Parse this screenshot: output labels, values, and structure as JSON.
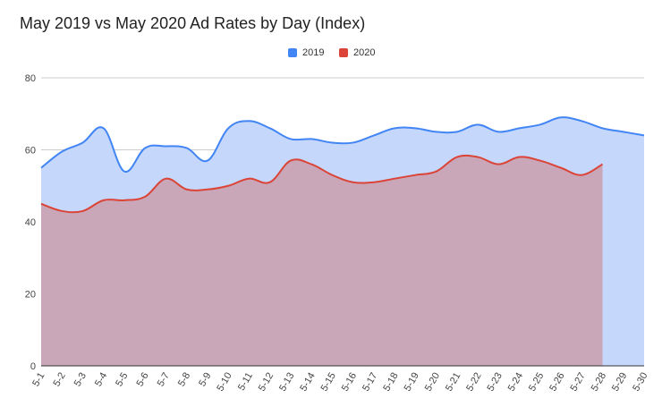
{
  "chart_data": {
    "type": "area",
    "title": "May 2019 vs May 2020 Ad Rates by Day (Index)",
    "xlabel": "",
    "ylabel": "",
    "categories": [
      "5-1",
      "5-2",
      "5-3",
      "5-4",
      "5-5",
      "5-6",
      "5-7",
      "5-8",
      "5-9",
      "5-10",
      "5-11",
      "5-12",
      "5-13",
      "5-14",
      "5-15",
      "5-16",
      "5-17",
      "5-18",
      "5-19",
      "5-20",
      "5-21",
      "5-22",
      "5-23",
      "5-24",
      "5-25",
      "5-26",
      "5-27",
      "5-28",
      "5-29",
      "5-30"
    ],
    "series": [
      {
        "name": "2019",
        "color": "#4285f4",
        "fill": "#c5d7fb",
        "values": [
          55,
          59.5,
          62,
          66,
          54,
          60.5,
          61,
          60.5,
          57,
          66,
          68,
          66,
          63,
          63,
          62,
          62,
          64,
          66,
          66,
          65,
          65,
          67,
          65,
          66,
          67,
          69,
          68,
          66,
          65,
          64
        ]
      },
      {
        "name": "2020",
        "color": "#db4437",
        "fill": "#c9a3b4",
        "values": [
          45,
          43,
          43,
          46,
          46,
          47,
          52,
          49,
          49,
          50,
          52,
          51,
          57,
          56,
          53,
          51,
          51,
          52,
          53,
          54,
          58,
          58,
          56,
          58,
          57,
          55,
          53,
          56,
          null,
          null
        ]
      }
    ],
    "yticks": [
      0,
      20,
      40,
      60,
      80
    ],
    "ylim": [
      0,
      80
    ],
    "grid": true,
    "legend_position": "top-center"
  }
}
